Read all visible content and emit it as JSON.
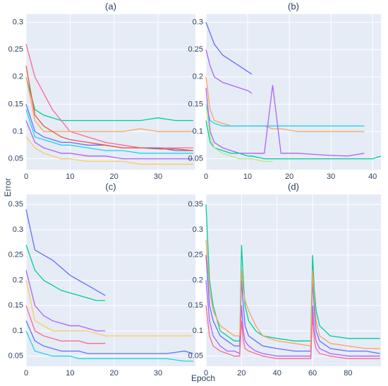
{
  "xlabel": "Epoch",
  "ylabel": "Error",
  "chart_data": [
    {
      "type": "line",
      "title": "(a)",
      "x": [
        0,
        2,
        4,
        6,
        8,
        10,
        14,
        18,
        22,
        26,
        30,
        34,
        38
      ],
      "xlim": [
        0,
        38.5
      ],
      "xticks": [
        0,
        10,
        20,
        30
      ],
      "ylim": [
        0.03,
        0.315
      ],
      "yticks": [
        0.05,
        0.1,
        0.15,
        0.2,
        0.25,
        0.3
      ],
      "grid": true,
      "series": [
        {
          "color": "#00cc96",
          "values": [
            0.2,
            0.14,
            0.13,
            0.125,
            0.12,
            0.12,
            0.12,
            0.12,
            0.12,
            0.12,
            0.125,
            0.12,
            0.12
          ]
        },
        {
          "color": "#FF6692",
          "values": [
            0.26,
            0.2,
            0.17,
            0.14,
            0.12,
            0.1,
            0.09,
            0.08,
            0.075,
            0.07,
            0.07,
            0.07,
            0.07
          ]
        },
        {
          "color": "#636efa",
          "values": [
            0.15,
            0.1,
            0.09,
            0.085,
            0.08,
            0.08,
            0.075,
            0.075,
            0.07,
            0.07,
            0.07,
            0.065,
            0.065
          ]
        },
        {
          "color": "#FFA15A",
          "values": [
            0.2,
            0.12,
            0.1,
            0.1,
            0.1,
            0.1,
            0.1,
            0.1,
            0.1,
            0.105,
            0.1,
            0.1,
            0.1
          ]
        },
        {
          "color": "#ab63fa",
          "values": [
            0.12,
            0.08,
            0.07,
            0.065,
            0.06,
            0.06,
            0.055,
            0.055,
            0.05,
            0.05,
            0.05,
            0.05,
            0.05
          ]
        },
        {
          "color": "#FECB52",
          "values": [
            0.09,
            0.07,
            0.06,
            0.055,
            0.05,
            0.05,
            0.045,
            0.045,
            0.045,
            0.04,
            0.04,
            0.04,
            0.04
          ]
        },
        {
          "color": "#EF553B",
          "values": [
            0.22,
            0.13,
            0.11,
            0.1,
            0.09,
            0.085,
            0.08,
            0.075,
            0.07,
            0.07,
            0.068,
            0.068,
            0.065
          ]
        },
        {
          "color": "#19d3f3",
          "values": [
            0.14,
            0.09,
            0.085,
            0.08,
            0.075,
            0.075,
            0.07,
            0.065,
            0.065,
            0.06,
            0.06,
            0.06,
            0.06
          ]
        }
      ]
    },
    {
      "type": "line",
      "title": "(b)",
      "x": [
        0,
        1,
        2,
        4,
        6,
        8,
        10,
        11,
        14,
        16,
        18,
        22,
        26,
        30,
        34,
        38,
        40,
        42
      ],
      "xlim": [
        0,
        42
      ],
      "xticks": [
        0,
        10,
        20,
        30,
        40
      ],
      "ylim": [
        0.03,
        0.315
      ],
      "yticks": [
        0.05,
        0.1,
        0.15,
        0.2,
        0.25,
        0.3
      ],
      "grid": true,
      "series": [
        {
          "color": "#636efa",
          "values": [
            0.3,
            0.28,
            0.26,
            0.24,
            0.23,
            0.22,
            0.21,
            0.205,
            null,
            null,
            null,
            null,
            null,
            null,
            null,
            null,
            null,
            null
          ]
        },
        {
          "color": "#ab63fa",
          "values": [
            0.25,
            0.22,
            0.2,
            0.19,
            0.185,
            0.18,
            0.175,
            0.17,
            null,
            null,
            null,
            null,
            null,
            null,
            null,
            null,
            null,
            null
          ]
        },
        {
          "color": "#FFA15A",
          "values": [
            0.2,
            0.14,
            0.12,
            0.115,
            0.11,
            0.11,
            0.11,
            0.11,
            0.11,
            0.105,
            0.105,
            0.1,
            0.1,
            0.1,
            0.1,
            0.1,
            null,
            null
          ]
        },
        {
          "color": "#19d3f3",
          "values": [
            0.15,
            0.12,
            0.115,
            0.11,
            0.11,
            0.11,
            0.11,
            0.11,
            0.11,
            0.11,
            0.11,
            0.11,
            0.11,
            0.11,
            0.11,
            0.11,
            null,
            null
          ]
        },
        {
          "color": "#ab63fa",
          "values": [
            0.18,
            0.1,
            0.08,
            0.07,
            0.065,
            0.06,
            0.06,
            0.06,
            0.06,
            0.185,
            0.06,
            0.06,
            0.058,
            0.056,
            0.055,
            0.06,
            null,
            null
          ]
        },
        {
          "color": "#00cc96",
          "values": [
            0.12,
            0.08,
            0.07,
            0.065,
            0.06,
            0.06,
            0.055,
            0.055,
            0.05,
            0.05,
            0.05,
            0.05,
            0.05,
            0.05,
            0.05,
            0.05,
            0.05,
            0.055
          ]
        },
        {
          "color": "#B6E880",
          "values": [
            0.15,
            0.09,
            0.07,
            0.06,
            0.055,
            0.05,
            0.05,
            0.05,
            0.045,
            0.045,
            null,
            null,
            null,
            null,
            null,
            null,
            null,
            null
          ]
        }
      ]
    },
    {
      "type": "line",
      "title": "(c)",
      "x": [
        0,
        2,
        4,
        6,
        8,
        10,
        12,
        14,
        16,
        18,
        20,
        24,
        28,
        32,
        36,
        38
      ],
      "xlim": [
        0,
        38.5
      ],
      "xticks": [
        0,
        10,
        20,
        30
      ],
      "ylim": [
        0.03,
        0.37
      ],
      "yticks": [
        0.05,
        0.1,
        0.15,
        0.2,
        0.25,
        0.3,
        0.35
      ],
      "grid": true,
      "series": [
        {
          "color": "#636efa",
          "values": [
            0.34,
            0.26,
            0.25,
            0.24,
            0.225,
            0.21,
            0.2,
            0.19,
            0.18,
            0.17,
            null,
            null,
            null,
            null,
            null,
            null
          ]
        },
        {
          "color": "#00cc96",
          "values": [
            0.27,
            0.22,
            0.2,
            0.19,
            0.18,
            0.175,
            0.17,
            0.165,
            0.16,
            0.16,
            null,
            null,
            null,
            null,
            null,
            null
          ]
        },
        {
          "color": "#FECB52",
          "values": [
            0.2,
            0.12,
            0.11,
            0.1,
            0.1,
            0.1,
            0.1,
            0.1,
            0.095,
            0.09,
            0.09,
            0.09,
            0.09,
            0.09,
            0.09,
            0.09
          ]
        },
        {
          "color": "#636efa",
          "values": [
            0.12,
            0.08,
            0.07,
            0.065,
            0.06,
            0.06,
            0.06,
            0.055,
            0.055,
            0.055,
            0.055,
            0.055,
            0.055,
            0.055,
            0.06,
            0.055
          ]
        },
        {
          "color": "#FF6692",
          "values": [
            0.15,
            0.1,
            0.09,
            0.085,
            0.08,
            0.08,
            0.08,
            0.075,
            0.075,
            0.075,
            null,
            null,
            null,
            null,
            null,
            null
          ]
        },
        {
          "color": "#ab63fa",
          "values": [
            0.22,
            0.15,
            0.13,
            0.12,
            0.115,
            0.11,
            0.11,
            0.105,
            0.1,
            0.1,
            null,
            null,
            null,
            null,
            null,
            null
          ]
        },
        {
          "color": "#19d3f3",
          "values": [
            0.1,
            0.06,
            0.055,
            0.05,
            0.05,
            0.05,
            0.045,
            0.045,
            0.045,
            0.045,
            0.045,
            0.045,
            0.045,
            0.045,
            0.04,
            0.04
          ]
        }
      ]
    },
    {
      "type": "line",
      "title": "(d)",
      "x": [
        0,
        2,
        4,
        8,
        12,
        16,
        19,
        20,
        21,
        22,
        24,
        28,
        32,
        40,
        50,
        59,
        60,
        61,
        62,
        64,
        70,
        80,
        90,
        98
      ],
      "xlim": [
        0,
        98.5
      ],
      "xticks": [
        0,
        20,
        40,
        60,
        80
      ],
      "ylim": [
        0.03,
        0.37
      ],
      "yticks": [
        0.05,
        0.1,
        0.15,
        0.2,
        0.25,
        0.3,
        0.35
      ],
      "grid": true,
      "series": [
        {
          "color": "#00cc96",
          "values": [
            0.35,
            0.2,
            0.15,
            0.1,
            0.09,
            0.08,
            0.08,
            0.27,
            0.2,
            0.15,
            0.12,
            0.1,
            0.09,
            0.085,
            0.08,
            0.08,
            0.25,
            0.18,
            0.14,
            0.11,
            0.09,
            0.085,
            0.085,
            0.085
          ]
        },
        {
          "color": "#636efa",
          "values": [
            0.25,
            0.15,
            0.12,
            0.09,
            0.08,
            0.07,
            0.07,
            0.2,
            0.15,
            0.11,
            0.09,
            0.08,
            0.07,
            0.065,
            0.06,
            0.06,
            0.2,
            0.14,
            0.1,
            0.08,
            0.065,
            0.06,
            0.06,
            0.055
          ]
        },
        {
          "color": "#ab63fa",
          "values": [
            0.2,
            0.12,
            0.09,
            0.07,
            0.06,
            0.06,
            0.055,
            0.15,
            0.1,
            0.08,
            0.07,
            0.06,
            0.055,
            0.05,
            0.05,
            0.05,
            0.15,
            0.1,
            0.08,
            0.065,
            0.055,
            0.05,
            0.05,
            0.05
          ]
        },
        {
          "color": "#FFA15A",
          "values": [
            0.28,
            0.18,
            0.14,
            0.11,
            0.1,
            0.09,
            0.09,
            0.22,
            0.18,
            0.16,
            0.14,
            0.11,
            0.09,
            0.08,
            0.075,
            0.07,
            0.22,
            0.16,
            0.12,
            0.09,
            0.075,
            0.07,
            0.065,
            0.065
          ]
        },
        {
          "color": "#FF6692",
          "values": [
            0.15,
            0.09,
            0.07,
            0.06,
            0.055,
            0.05,
            0.05,
            0.12,
            0.08,
            0.065,
            0.06,
            0.055,
            0.05,
            0.045,
            0.045,
            0.045,
            0.13,
            0.08,
            0.065,
            0.055,
            0.05,
            0.045,
            0.045,
            0.045
          ]
        }
      ]
    }
  ]
}
